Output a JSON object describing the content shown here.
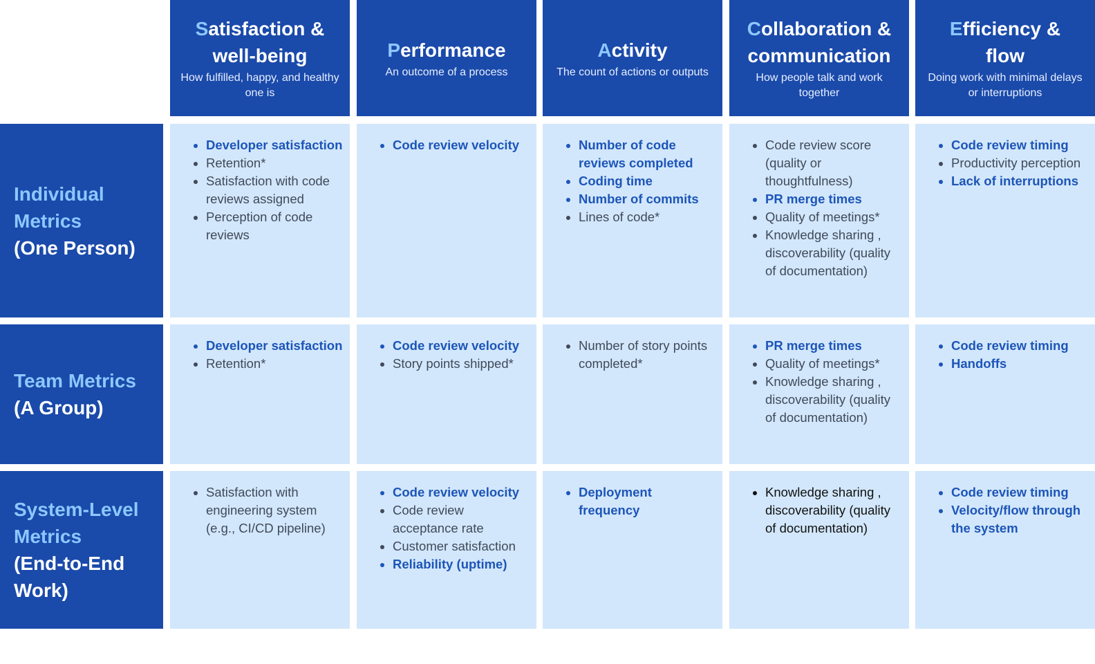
{
  "columns": [
    {
      "first": "S",
      "rest": "atisfaction &",
      "rest2": "well-being",
      "subtitle": "How fulfilled, happy, and healthy one is"
    },
    {
      "first": "P",
      "rest": "erformance",
      "rest2": "",
      "subtitle": "An outcome of a process"
    },
    {
      "first": "A",
      "rest": "ctivity",
      "rest2": "",
      "subtitle": "The count of actions or outputs"
    },
    {
      "first": "C",
      "rest": "ollaboration &",
      "rest2": "communication",
      "subtitle": "How people talk and work together"
    },
    {
      "first": "E",
      "rest": "fficiency &",
      "rest2": "flow",
      "subtitle": "Doing work with minimal delays or interruptions"
    }
  ],
  "rows": [
    {
      "title": "Individual Metrics",
      "subtitle": "(One Person)",
      "cells": [
        [
          {
            "text": "Developer satisfaction",
            "style": "hl"
          },
          {
            "text": "Retention*",
            "style": "normal"
          },
          {
            "text": "Satisfaction with code reviews assigned",
            "style": "normal"
          },
          {
            "text": "Perception of code reviews",
            "style": "normal"
          }
        ],
        [
          {
            "text": "Code review velocity",
            "style": "hl"
          }
        ],
        [
          {
            "text": "Number of code reviews completed",
            "style": "hl"
          },
          {
            "text": "Coding time",
            "style": "hl"
          },
          {
            "text": "Number of commits",
            "style": "hl"
          },
          {
            "text": "Lines of code*",
            "style": "normal"
          }
        ],
        [
          {
            "text": "Code review score (quality or thoughtfulness)",
            "style": "normal"
          },
          {
            "text": "PR merge times",
            "style": "hl"
          },
          {
            "text": "Quality of meetings*",
            "style": "normal"
          },
          {
            "text": "Knowledge sharing , discoverability (quality of documentation)",
            "style": "normal"
          }
        ],
        [
          {
            "text": "Code review timing",
            "style": "hl"
          },
          {
            "text": "Productivity perception",
            "style": "normal"
          },
          {
            "text": "Lack of interruptions",
            "style": "hl"
          }
        ]
      ]
    },
    {
      "title": "Team Metrics",
      "subtitle": "(A Group)",
      "cells": [
        [
          {
            "text": "Developer satisfaction",
            "style": "hl"
          },
          {
            "text": "Retention*",
            "style": "normal"
          }
        ],
        [
          {
            "text": "Code review velocity",
            "style": "hl"
          },
          {
            "text": "Story points shipped*",
            "style": "normal"
          }
        ],
        [
          {
            "text": "Number of story points completed*",
            "style": "normal"
          }
        ],
        [
          {
            "text": "PR merge times",
            "style": "hl"
          },
          {
            "text": "Quality of meetings*",
            "style": "normal"
          },
          {
            "text": "Knowledge sharing , discoverability (quality of documentation)",
            "style": "normal"
          }
        ],
        [
          {
            "text": "Code review timing",
            "style": "hl"
          },
          {
            "text": "Handoffs",
            "style": "hl"
          }
        ]
      ]
    },
    {
      "title": "System-Level Metrics",
      "subtitle": "(End-to-End Work)",
      "cells": [
        [
          {
            "text": "Satisfaction with engineering system (e.g., CI/CD pipeline)",
            "style": "normal"
          }
        ],
        [
          {
            "text": "Code review velocity",
            "style": "hl"
          },
          {
            "text": "Code review acceptance rate",
            "style": "normal"
          },
          {
            "text": "Customer satisfaction",
            "style": "normal"
          },
          {
            "text": "Reliability (uptime)",
            "style": "hl"
          }
        ],
        [
          {
            "text": "Deployment frequency",
            "style": "hl"
          }
        ],
        [
          {
            "text": "Knowledge sharing , discoverability (quality of documentation)",
            "style": "dark"
          }
        ],
        [
          {
            "text": "Code review timing",
            "style": "hl"
          },
          {
            "text": "Velocity/flow through the system",
            "style": "hl"
          }
        ]
      ]
    }
  ],
  "colors": {
    "header_bg": "#1a4aaa",
    "cell_bg": "#d2e7fb",
    "highlight_text": "#1d55b8",
    "initial_letter": "#8cc8ff"
  }
}
